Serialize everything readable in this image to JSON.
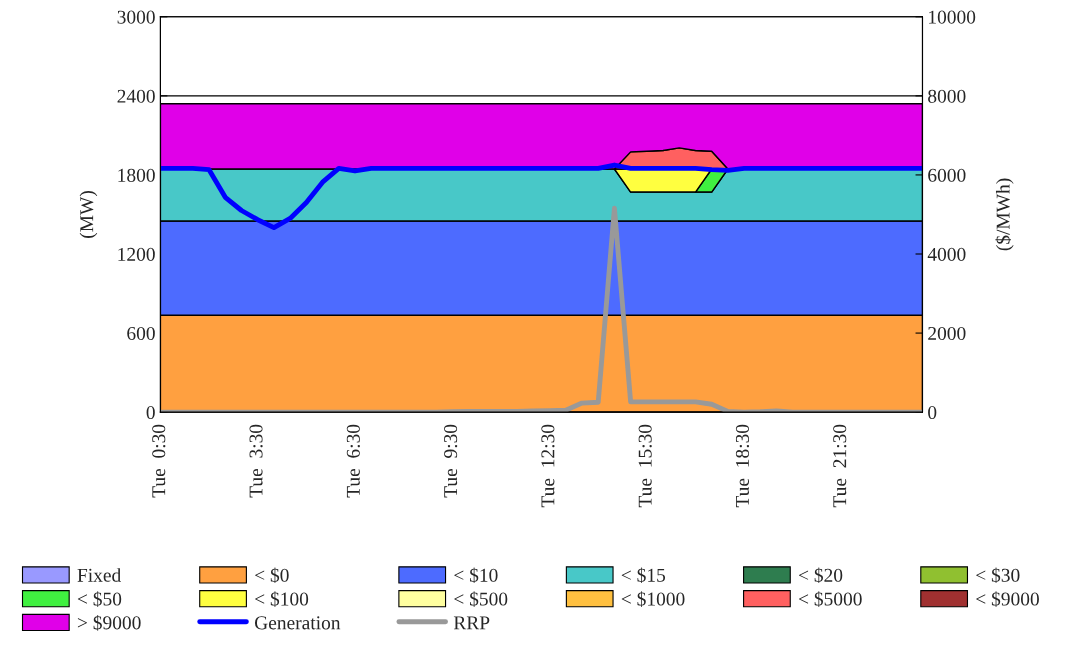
{
  "chart_data": {
    "type": "area",
    "stacked": true,
    "ylabel": "(MW)",
    "y2label": "($/MWh)",
    "categories": [
      "Tue  0:30",
      null,
      null,
      null,
      null,
      null,
      "Tue  3:30",
      null,
      null,
      null,
      null,
      null,
      "Tue  6:30",
      null,
      null,
      null,
      null,
      null,
      "Tue  9:30",
      null,
      null,
      null,
      null,
      null,
      "Tue  12:30",
      null,
      null,
      null,
      null,
      null,
      "Tue  15:30",
      null,
      null,
      null,
      null,
      null,
      "Tue  18:30",
      null,
      null,
      null,
      null,
      null,
      "Tue  21:30",
      null,
      null,
      null,
      null,
      null
    ],
    "ylim": [
      0,
      3000
    ],
    "yticks": [
      0,
      600,
      1200,
      1800,
      2400,
      3000
    ],
    "y2lim": [
      0,
      10000
    ],
    "y2ticks": [
      0,
      2000,
      4000,
      6000,
      8000,
      10000
    ],
    "ref_lines": [
      {
        "axis": "y",
        "value": 2400,
        "color": "#000000"
      }
    ],
    "legend": "bottom",
    "grid": false,
    "series": [
      {
        "name": "Fixed",
        "color": "#9999ff",
        "values": [
          null,
          null,
          null,
          null,
          null,
          null,
          null,
          null,
          null,
          null,
          null,
          null,
          null,
          null,
          null,
          null,
          null,
          null,
          null,
          null,
          null,
          null,
          null,
          null,
          null,
          null,
          null,
          null,
          null,
          null,
          null,
          null,
          null,
          null,
          null,
          null,
          null,
          null,
          null,
          null,
          null,
          null,
          null,
          null,
          null,
          null,
          null,
          null
        ]
      },
      {
        "name": "< $0",
        "color": "#ffa040",
        "values": [
          735,
          735,
          735,
          735,
          735,
          735,
          735,
          735,
          735,
          735,
          735,
          735,
          735,
          735,
          735,
          735,
          735,
          735,
          735,
          735,
          735,
          735,
          735,
          735,
          735,
          735,
          735,
          735,
          735,
          735,
          735,
          735,
          735,
          735,
          735,
          735,
          735,
          735,
          735,
          735,
          735,
          735,
          735,
          735,
          735,
          735,
          735,
          735
        ]
      },
      {
        "name": "< $10",
        "color": "#4d6bff",
        "values": [
          715,
          715,
          715,
          715,
          715,
          715,
          715,
          715,
          715,
          715,
          715,
          715,
          715,
          715,
          715,
          715,
          715,
          715,
          715,
          715,
          715,
          715,
          715,
          715,
          715,
          715,
          715,
          715,
          715,
          715,
          715,
          715,
          715,
          715,
          715,
          715,
          715,
          715,
          715,
          715,
          715,
          715,
          715,
          715,
          715,
          715,
          715,
          715
        ]
      },
      {
        "name": "< $15",
        "color": "#48c8c8",
        "values": [
          395,
          395,
          395,
          395,
          395,
          395,
          395,
          395,
          395,
          395,
          395,
          395,
          395,
          395,
          395,
          395,
          395,
          395,
          395,
          395,
          395,
          395,
          395,
          395,
          395,
          395,
          395,
          395,
          395,
          220,
          220,
          220,
          220,
          220,
          220,
          395,
          395,
          395,
          395,
          395,
          395,
          395,
          395,
          395,
          395,
          395,
          395,
          395
        ]
      },
      {
        "name": "< $20",
        "color": "#2e7d4f",
        "values": [
          null,
          null,
          null,
          null,
          null,
          null,
          null,
          null,
          null,
          null,
          null,
          null,
          null,
          null,
          null,
          null,
          null,
          null,
          null,
          null,
          null,
          null,
          null,
          null,
          null,
          null,
          null,
          null,
          null,
          null,
          null,
          null,
          null,
          null,
          null,
          null,
          null,
          null,
          null,
          null,
          null,
          null,
          null,
          null,
          null,
          null,
          null,
          null
        ]
      },
      {
        "name": "< $30",
        "color": "#90c030",
        "values": [
          null,
          null,
          null,
          null,
          null,
          null,
          null,
          null,
          null,
          null,
          null,
          null,
          null,
          null,
          null,
          null,
          null,
          null,
          null,
          null,
          null,
          null,
          null,
          null,
          null,
          null,
          null,
          null,
          null,
          null,
          null,
          null,
          null,
          null,
          null,
          null,
          null,
          null,
          null,
          null,
          null,
          null,
          null,
          null,
          null,
          null,
          null,
          null
        ]
      },
      {
        "name": "< $50",
        "color": "#40f040",
        "values": [
          null,
          null,
          null,
          null,
          null,
          null,
          null,
          null,
          null,
          null,
          null,
          null,
          null,
          null,
          null,
          null,
          null,
          null,
          null,
          null,
          null,
          null,
          null,
          null,
          null,
          null,
          null,
          null,
          null,
          null,
          null,
          null,
          null,
          0,
          175,
          0,
          null,
          null,
          null,
          null,
          null,
          null,
          null,
          null,
          null,
          null,
          null,
          null
        ]
      },
      {
        "name": "< $100",
        "color": "#ffff40",
        "values": [
          null,
          null,
          null,
          null,
          null,
          null,
          null,
          null,
          null,
          null,
          null,
          null,
          null,
          null,
          null,
          null,
          null,
          null,
          null,
          null,
          null,
          null,
          null,
          null,
          null,
          null,
          null,
          null,
          0,
          175,
          175,
          175,
          175,
          175,
          0,
          null,
          null,
          null,
          null,
          null,
          null,
          null,
          null,
          null,
          null,
          null,
          null,
          null
        ]
      },
      {
        "name": "< $500",
        "color": "#ffffa0",
        "values": [
          null,
          null,
          null,
          null,
          null,
          null,
          null,
          null,
          null,
          null,
          null,
          null,
          null,
          null,
          null,
          null,
          null,
          null,
          null,
          null,
          null,
          null,
          null,
          null,
          null,
          null,
          null,
          null,
          null,
          null,
          null,
          null,
          null,
          null,
          null,
          null,
          null,
          null,
          null,
          null,
          null,
          null,
          null,
          null,
          null,
          null,
          null,
          null
        ]
      },
      {
        "name": "< $1000",
        "color": "#ffc040",
        "values": [
          null,
          null,
          null,
          null,
          null,
          null,
          null,
          null,
          null,
          null,
          null,
          null,
          null,
          null,
          null,
          null,
          null,
          null,
          null,
          null,
          null,
          null,
          null,
          null,
          null,
          null,
          null,
          null,
          null,
          null,
          null,
          null,
          null,
          null,
          null,
          null,
          null,
          null,
          null,
          null,
          null,
          null,
          null,
          null,
          null,
          null,
          null,
          null
        ]
      },
      {
        "name": "< $5000",
        "color": "#ff6060",
        "values": [
          null,
          null,
          null,
          null,
          null,
          null,
          null,
          null,
          null,
          null,
          null,
          null,
          null,
          null,
          null,
          null,
          null,
          null,
          null,
          null,
          null,
          null,
          null,
          null,
          null,
          null,
          null,
          null,
          0,
          130,
          135,
          140,
          160,
          140,
          135,
          0,
          null,
          null,
          null,
          null,
          null,
          null,
          null,
          null,
          null,
          null,
          null,
          null
        ]
      },
      {
        "name": "< $9000",
        "color": "#a03030",
        "values": [
          null,
          null,
          null,
          null,
          null,
          null,
          null,
          null,
          null,
          null,
          null,
          null,
          null,
          null,
          null,
          null,
          null,
          null,
          null,
          null,
          null,
          null,
          null,
          null,
          null,
          null,
          null,
          null,
          null,
          null,
          null,
          null,
          null,
          null,
          null,
          null,
          null,
          null,
          null,
          null,
          null,
          null,
          null,
          null,
          null,
          null,
          null,
          null
        ]
      },
      {
        "name": "> $9000",
        "color": "#e000e8",
        "values": [
          495,
          495,
          495,
          495,
          495,
          495,
          495,
          495,
          495,
          495,
          495,
          495,
          495,
          495,
          495,
          495,
          495,
          495,
          495,
          495,
          495,
          495,
          495,
          495,
          495,
          495,
          495,
          495,
          495,
          365,
          360,
          355,
          335,
          355,
          360,
          495,
          495,
          495,
          495,
          495,
          495,
          495,
          495,
          495,
          495,
          495,
          495,
          495
        ]
      },
      {
        "name": "Generation",
        "type": "line",
        "color": "#0000ff",
        "values": [
          1850,
          1850,
          1850,
          1840,
          1630,
          1530,
          1460,
          1400,
          1470,
          1590,
          1745,
          1850,
          1830,
          1850,
          1850,
          1850,
          1850,
          1850,
          1850,
          1850,
          1850,
          1850,
          1850,
          1850,
          1850,
          1850,
          1850,
          1850,
          1875,
          1850,
          1850,
          1850,
          1850,
          1850,
          1840,
          1835,
          1850,
          1850,
          1850,
          1850,
          1850,
          1850,
          1850,
          1850,
          1850,
          1850,
          1850,
          1850
        ]
      },
      {
        "name": "RRP",
        "type": "line",
        "axis": "y2",
        "color": "#999999",
        "values": [
          0,
          0,
          0,
          0,
          0,
          0,
          0,
          0,
          0,
          0,
          0,
          0,
          0,
          0,
          0,
          0,
          0,
          0,
          10,
          20,
          20,
          20,
          20,
          30,
          40,
          50,
          230,
          250,
          5160,
          260,
          260,
          260,
          260,
          260,
          200,
          20,
          0,
          10,
          30,
          0,
          0,
          0,
          0,
          0,
          0,
          0,
          0,
          0
        ]
      }
    ]
  }
}
